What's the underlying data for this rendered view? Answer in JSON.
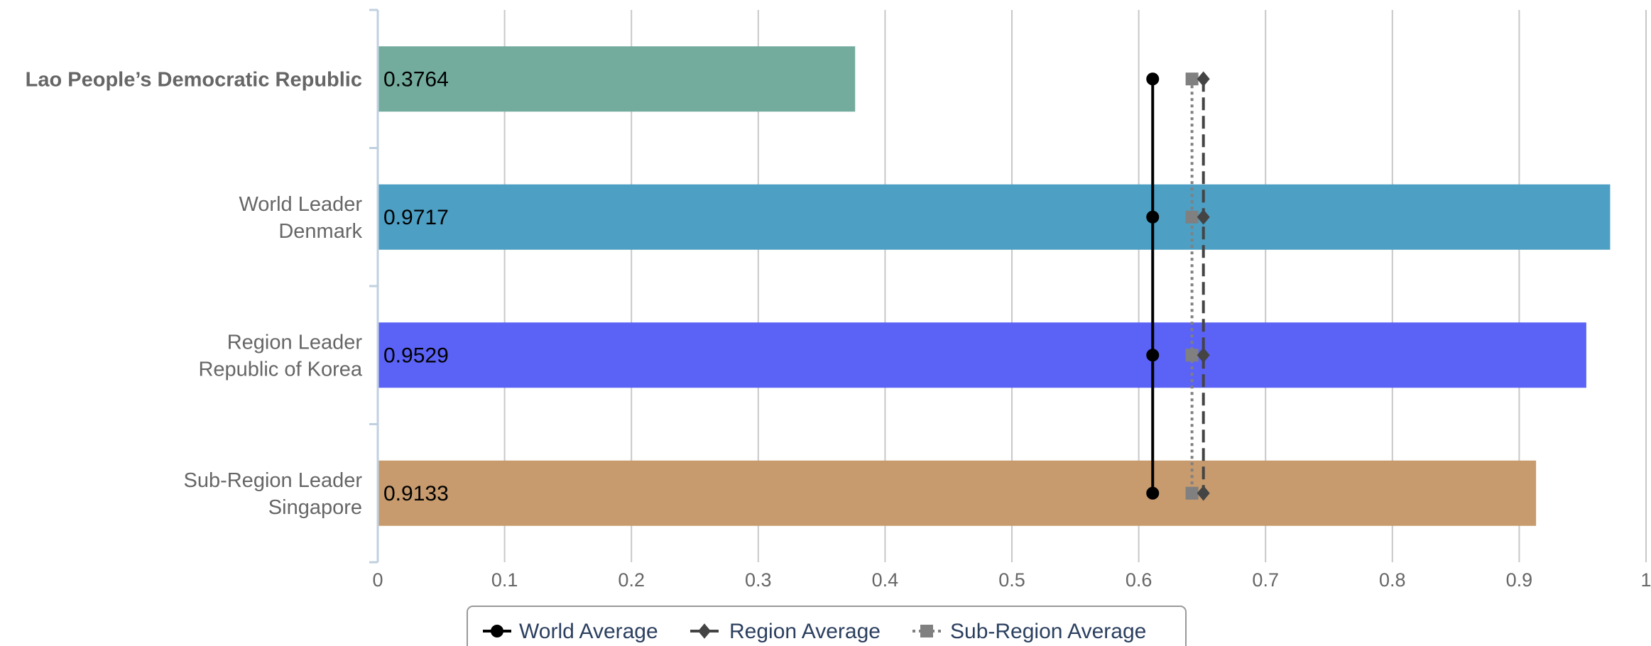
{
  "chart_data": {
    "type": "bar",
    "orientation": "horizontal",
    "xlim": [
      0,
      1
    ],
    "ticks": [
      "0",
      "0.1",
      "0.2",
      "0.3",
      "0.4",
      "0.5",
      "0.6",
      "0.7",
      "0.8",
      "0.9",
      "1"
    ],
    "grid": true,
    "legend_position": "bottom-center",
    "categories": [
      {
        "lines": [
          "Lao People’s Democratic Republic"
        ],
        "bold": true
      },
      {
        "lines": [
          "World Leader",
          "Denmark"
        ],
        "bold": false
      },
      {
        "lines": [
          "Region Leader",
          "Republic of Korea"
        ],
        "bold": false
      },
      {
        "lines": [
          "Sub-Region Leader",
          "Singapore"
        ],
        "bold": false
      }
    ],
    "bars": [
      {
        "value": 0.3764,
        "label": "0.3764",
        "color": "#73ac9d"
      },
      {
        "value": 0.9717,
        "label": "0.9717",
        "color": "#4d9fc4"
      },
      {
        "value": 0.9529,
        "label": "0.9529",
        "color": "#5b62f6"
      },
      {
        "value": 0.9133,
        "label": "0.9133",
        "color": "#c79b6e"
      }
    ],
    "series": [
      {
        "name": "World Average",
        "value": 0.611,
        "marker": "circle",
        "line_style": "solid",
        "color": "#000000"
      },
      {
        "name": "Region Average",
        "value": 0.651,
        "marker": "diamond",
        "line_style": "dashed",
        "color": "#444444"
      },
      {
        "name": "Sub-Region Average",
        "value": 0.642,
        "marker": "square",
        "line_style": "dotted",
        "color": "#808080"
      }
    ]
  }
}
